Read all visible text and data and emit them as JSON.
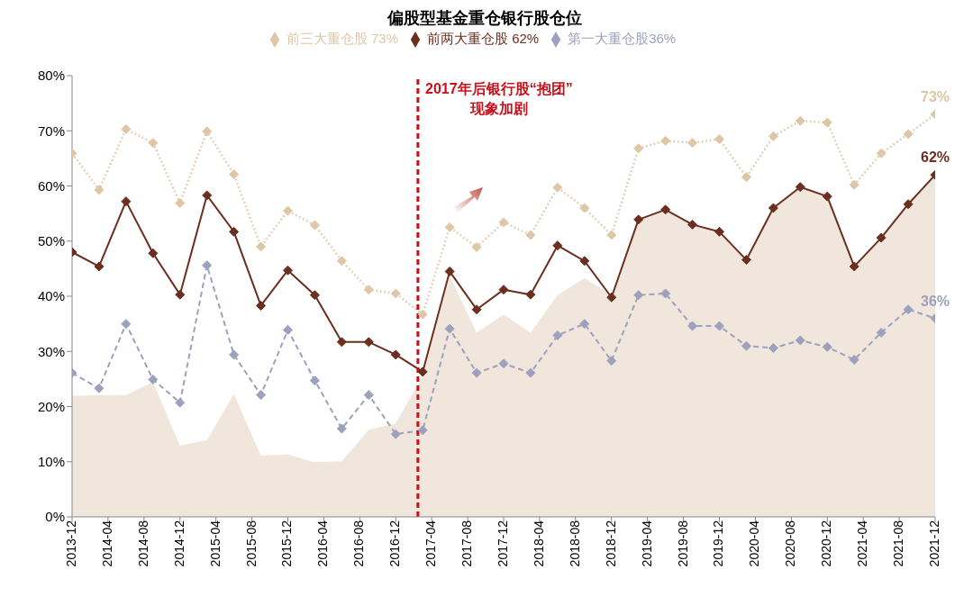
{
  "chart_data": {
    "type": "line",
    "title": "偏股型基金重仓银行股仓位",
    "x": [
      "2013-12",
      "2014-03",
      "2014-06",
      "2014-09",
      "2014-12",
      "2015-03",
      "2015-06",
      "2015-09",
      "2015-12",
      "2016-03",
      "2016-06",
      "2016-09",
      "2016-12",
      "2017-03",
      "2017-06",
      "2017-09",
      "2017-12",
      "2018-03",
      "2018-06",
      "2018-09",
      "2018-12",
      "2019-03",
      "2019-06",
      "2019-09",
      "2019-12",
      "2020-03",
      "2020-06",
      "2020-09",
      "2020-12",
      "2021-03",
      "2021-06",
      "2021-09",
      "2021-12"
    ],
    "series": [
      {
        "type": "area",
        "color": "#f0e6dc",
        "marker": "none",
        "values": [
          21.9,
          22.1,
          22.1,
          24.5,
          12.9,
          13.9,
          22.3,
          11.1,
          11.3,
          9.9,
          10.1,
          15.8,
          17.0,
          25.5,
          43.7,
          33.4,
          36.7,
          33.4,
          40.2,
          43.3,
          40.2,
          53.9,
          55.7,
          53.0,
          51.7,
          46.6,
          56.0,
          59.8,
          58.1,
          45.4,
          50.6,
          56.7,
          62
        ]
      },
      {
        "name": "第一大重仓股36%",
        "color": "#9da1bd",
        "line_style": "dashed",
        "values": [
          26.1,
          23.3,
          35.0,
          24.9,
          20.7,
          45.6,
          29.4,
          22.1,
          33.9,
          24.7,
          16.0,
          22.1,
          15.0,
          15.7,
          34.1,
          26.1,
          27.8,
          26.1,
          32.9,
          35.0,
          28.3,
          40.2,
          40.5,
          34.6,
          34.6,
          31.0,
          30.6,
          32.0,
          30.8,
          28.5,
          33.4,
          37.6,
          36
        ],
        "value_labels": [
          null,
          null,
          null,
          null,
          null,
          null,
          null,
          null,
          null,
          null,
          null,
          null,
          null,
          null,
          null,
          null,
          null,
          null,
          null,
          null,
          null,
          null,
          null,
          null,
          null,
          null,
          null,
          null,
          null,
          null,
          null,
          null,
          "36%"
        ]
      },
      {
        "name": "前两大重仓股 62%",
        "color": "#6b2e1f",
        "line_style": "solid",
        "values": [
          48.0,
          45.4,
          57.2,
          47.8,
          40.3,
          58.3,
          51.7,
          38.3,
          44.7,
          40.2,
          31.7,
          31.7,
          29.4,
          26.3,
          44.5,
          37.6,
          41.2,
          40.3,
          49.2,
          46.4,
          39.8,
          53.9,
          55.7,
          53.0,
          51.7,
          46.6,
          56.0,
          59.8,
          58.1,
          45.4,
          50.6,
          56.7,
          62
        ],
        "value_labels": [
          null,
          null,
          null,
          null,
          null,
          null,
          null,
          null,
          null,
          null,
          null,
          null,
          null,
          null,
          null,
          null,
          null,
          null,
          null,
          null,
          null,
          null,
          null,
          null,
          null,
          null,
          null,
          null,
          null,
          null,
          null,
          null,
          "62%"
        ]
      },
      {
        "name": "前三大重仓股 73%",
        "color": "#dfc6a6",
        "line_style": "dotted",
        "values": [
          65.9,
          59.3,
          70.3,
          67.8,
          56.9,
          69.9,
          62.1,
          49.0,
          55.5,
          52.9,
          46.4,
          41.2,
          40.5,
          36.7,
          52.5,
          48.9,
          53.4,
          51.1,
          59.7,
          56.0,
          51.1,
          66.8,
          68.2,
          67.8,
          68.5,
          61.6,
          69.0,
          71.8,
          71.5,
          60.2,
          65.9,
          69.4,
          73
        ],
        "value_labels": [
          null,
          null,
          null,
          null,
          null,
          null,
          null,
          null,
          null,
          null,
          null,
          null,
          null,
          null,
          null,
          null,
          null,
          null,
          null,
          null,
          null,
          null,
          null,
          null,
          null,
          null,
          null,
          null,
          null,
          null,
          null,
          null,
          "73%"
        ]
      }
    ],
    "xlim": [
      "2013-12",
      "2021-12"
    ],
    "xticks": [
      "2013-12",
      "2014-04",
      "2014-08",
      "2014-12",
      "2015-04",
      "2015-08",
      "2015-12",
      "2016-04",
      "2016-08",
      "2016-12",
      "2017-04",
      "2017-08",
      "2017-12",
      "2018-04",
      "2018-08",
      "2018-12",
      "2019-04",
      "2019-08",
      "2019-12",
      "2020-04",
      "2020-08",
      "2020-12",
      "2021-04",
      "2021-08",
      "2021-12"
    ],
    "ylim": [
      0,
      80
    ],
    "yticks": [
      {
        "value": 0,
        "label": "0%"
      },
      {
        "value": 10,
        "label": "10%"
      },
      {
        "value": 20,
        "label": "20%"
      },
      {
        "value": 30,
        "label": "30%"
      },
      {
        "value": 40,
        "label": "40%"
      },
      {
        "value": 50,
        "label": "50%"
      },
      {
        "value": 60,
        "label": "60%"
      },
      {
        "value": 70,
        "label": "70%"
      },
      {
        "value": 80,
        "label": "80%"
      }
    ],
    "ref_lines": [
      {
        "axis": "x",
        "value": "2017-02-15",
        "label": "2017年后银行股“抱团”现象加剧",
        "color": "#c8101a",
        "line_style": "dashed"
      }
    ],
    "marker": "diamond",
    "grid": false,
    "legend": "top"
  }
}
